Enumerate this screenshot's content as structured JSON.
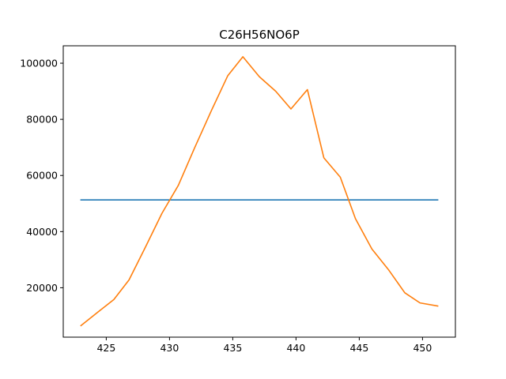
{
  "chart_data": {
    "type": "line",
    "title": "C26H56NO6P",
    "xlabel": "",
    "ylabel": "",
    "xlim": [
      421.6,
      452.6
    ],
    "ylim": [
      2400,
      106200
    ],
    "x_ticks": [
      425,
      430,
      435,
      440,
      445,
      450
    ],
    "y_ticks": [
      20000,
      40000,
      60000,
      80000,
      100000
    ],
    "grid": false,
    "series": [
      {
        "color": "#1f77b4",
        "x": [
          423.0,
          451.2
        ],
        "y": [
          51300,
          51300
        ]
      },
      {
        "color": "#ff7f0e",
        "x": [
          423.0,
          424.3,
          425.6,
          426.8,
          428.1,
          429.4,
          430.7,
          432.0,
          433.3,
          434.6,
          435.8,
          437.1,
          438.4,
          439.6,
          440.9,
          442.2,
          443.5,
          444.7,
          446.0,
          447.3,
          448.6,
          449.8,
          451.2
        ],
        "y": [
          6500,
          11200,
          15800,
          22800,
          34500,
          46500,
          56500,
          70000,
          83000,
          95500,
          102300,
          95200,
          90000,
          83700,
          90600,
          66300,
          59400,
          44600,
          33800,
          26500,
          18200,
          14600,
          13500
        ]
      }
    ]
  }
}
